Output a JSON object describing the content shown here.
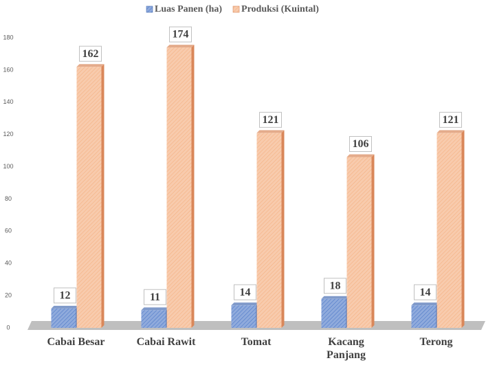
{
  "chart_data": {
    "type": "bar",
    "categories": [
      "Cabai Besar",
      "Cabai Rawit",
      "Tomat",
      "Kacang Panjang",
      "Terong"
    ],
    "series": [
      {
        "name": "Luas Panen (ha)",
        "color": "#8faadc",
        "values": [
          12,
          11,
          14,
          18,
          14
        ]
      },
      {
        "name": "Produksi (Kuintal)",
        "color": "#f4b183",
        "values": [
          162,
          174,
          121,
          106,
          121
        ]
      }
    ],
    "ylim": [
      0,
      180
    ],
    "yticks": [
      0,
      20,
      40,
      60,
      80,
      100,
      120,
      140,
      160,
      180
    ],
    "legend": "top"
  }
}
